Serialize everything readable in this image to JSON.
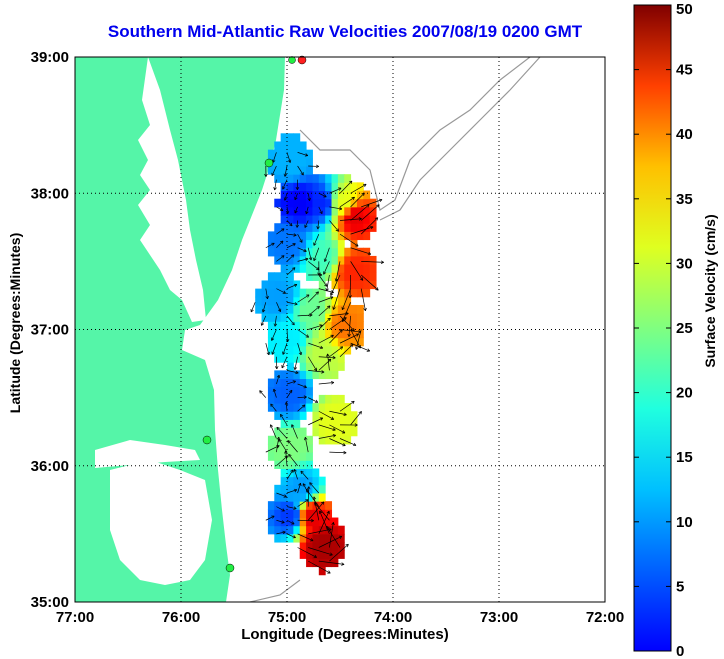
{
  "chart_data": {
    "type": "heatmap",
    "title": "Southern Mid-Atlantic Raw Velocities 2007/08/19 0200 GMT",
    "xlabel": "Longitude (Degrees:Minutes)",
    "ylabel": "Latitude (Degrees:Minutes)",
    "colorbar_label": "Surface Velocity (cm/s)",
    "x_ticks": [
      "77:00",
      "76:00",
      "75:00",
      "74:00",
      "73:00",
      "72:00"
    ],
    "y_ticks": [
      "39:00",
      "38:00",
      "37:00",
      "36:00",
      "35:00"
    ],
    "colorbar_ticks": [
      "50",
      "45",
      "40",
      "35",
      "30",
      "25",
      "20",
      "15",
      "10",
      "5",
      "0"
    ],
    "xlim": [
      -77,
      -72
    ],
    "ylim": [
      35,
      39
    ],
    "clim": [
      0,
      50
    ],
    "grid": "dotted",
    "colormap": "jet",
    "land_color": "#55f5a8",
    "velocity_field": [
      {
        "lon": -75.0,
        "lat": 38.2,
        "speed": 15
      },
      {
        "lon": -74.9,
        "lat": 37.9,
        "speed": 6
      },
      {
        "lon": -74.7,
        "lat": 37.9,
        "speed": 8
      },
      {
        "lon": -74.5,
        "lat": 37.9,
        "speed": 30
      },
      {
        "lon": -74.4,
        "lat": 37.8,
        "speed": 45
      },
      {
        "lon": -75.0,
        "lat": 37.6,
        "speed": 12
      },
      {
        "lon": -74.7,
        "lat": 37.5,
        "speed": 22
      },
      {
        "lon": -74.4,
        "lat": 37.4,
        "speed": 42
      },
      {
        "lon": -75.1,
        "lat": 37.2,
        "speed": 14
      },
      {
        "lon": -74.8,
        "lat": 37.1,
        "speed": 24
      },
      {
        "lon": -74.5,
        "lat": 37.0,
        "speed": 38
      },
      {
        "lon": -75.0,
        "lat": 36.9,
        "speed": 18
      },
      {
        "lon": -74.7,
        "lat": 36.8,
        "speed": 28
      },
      {
        "lon": -75.0,
        "lat": 36.5,
        "speed": 11
      },
      {
        "lon": -74.6,
        "lat": 36.3,
        "speed": 30
      },
      {
        "lon": -75.0,
        "lat": 36.1,
        "speed": 25
      },
      {
        "lon": -74.9,
        "lat": 35.8,
        "speed": 14
      },
      {
        "lon": -75.0,
        "lat": 35.6,
        "speed": 9
      },
      {
        "lon": -74.8,
        "lat": 35.6,
        "speed": 45
      },
      {
        "lon": -74.7,
        "lat": 35.4,
        "speed": 48
      }
    ]
  }
}
